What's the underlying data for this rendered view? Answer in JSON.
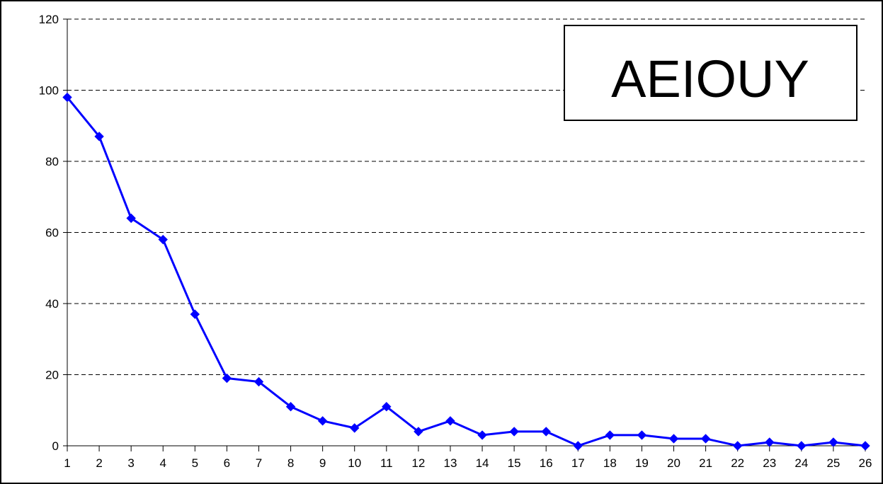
{
  "chart_data": {
    "type": "line",
    "title": "",
    "xlabel": "",
    "ylabel": "",
    "x": [
      1,
      2,
      3,
      4,
      5,
      6,
      7,
      8,
      9,
      10,
      11,
      12,
      13,
      14,
      15,
      16,
      17,
      18,
      19,
      20,
      21,
      22,
      23,
      24,
      25,
      26
    ],
    "x_tick_labels": [
      "1",
      "2",
      "3",
      "4",
      "5",
      "6",
      "7",
      "8",
      "9",
      "10",
      "11",
      "12",
      "13",
      "14",
      "15",
      "16",
      "17",
      "18",
      "19",
      "20",
      "21",
      "22",
      "23",
      "24",
      "25",
      "26"
    ],
    "y_tick_labels": [
      "0",
      "20",
      "40",
      "60",
      "80",
      "100",
      "120"
    ],
    "y_ticks": [
      0,
      20,
      40,
      60,
      80,
      100,
      120
    ],
    "ylim": [
      0,
      120
    ],
    "grid": "horizontal dashed",
    "legend_placement": "top-right",
    "series": [
      {
        "name": "AEIOUY",
        "color": "#0000ff",
        "marker": "diamond",
        "values": [
          98,
          87,
          64,
          58,
          37,
          19,
          18,
          11,
          7,
          5,
          11,
          4,
          7,
          3,
          4,
          4,
          0,
          3,
          3,
          2,
          2,
          0,
          1,
          0,
          1,
          0
        ]
      }
    ]
  }
}
